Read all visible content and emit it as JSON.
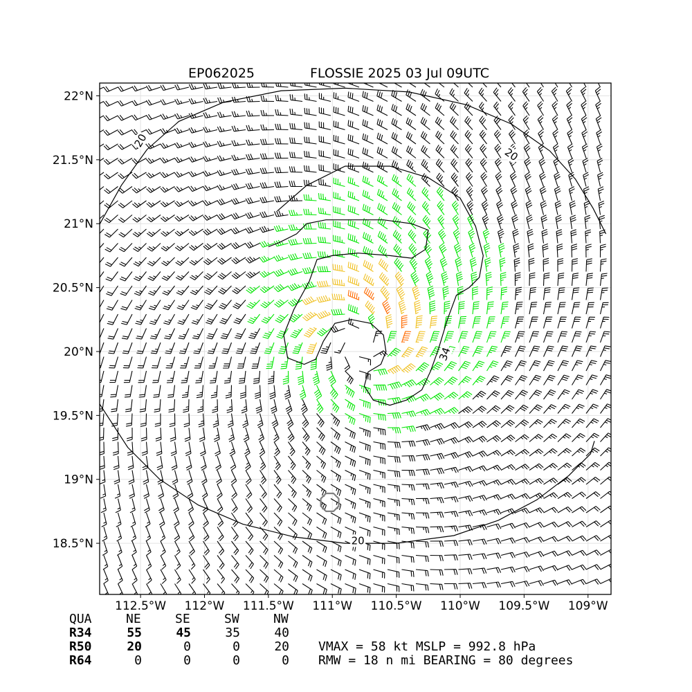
{
  "title": {
    "storm_id": "EP062025",
    "storm_label": "FLOSSIE 2025 03 Jul 09UTC"
  },
  "colors": {
    "below34": "#000000",
    "r34_to_50": "#00e600",
    "r50_to_64": "#f0c020",
    "r64_plus": "#ff6a00",
    "ring": "#808080"
  },
  "chart_data": {
    "type": "wind-barb map",
    "xlim": [
      -112.82,
      -108.82
    ],
    "ylim": [
      18.1,
      22.1
    ],
    "x_ticks": [
      {
        "value": -112.5,
        "label": "112.5°W"
      },
      {
        "value": -112.0,
        "label": "112°W"
      },
      {
        "value": -111.5,
        "label": "111.5°W"
      },
      {
        "value": -111.0,
        "label": "111°W"
      },
      {
        "value": -110.5,
        "label": "110.5°W"
      },
      {
        "value": -110.0,
        "label": "110°W"
      },
      {
        "value": -109.5,
        "label": "109.5°W"
      },
      {
        "value": -109.0,
        "label": "109°W"
      }
    ],
    "y_ticks": [
      {
        "value": 18.5,
        "label": "18.5°N"
      },
      {
        "value": 19.0,
        "label": "19°N"
      },
      {
        "value": 19.5,
        "label": "19.5°N"
      },
      {
        "value": 20.0,
        "label": "20°N"
      },
      {
        "value": 20.5,
        "label": "20.5°N"
      },
      {
        "value": 21.0,
        "label": "21°N"
      },
      {
        "value": 21.5,
        "label": "21.5°N"
      },
      {
        "value": 22.0,
        "label": "22°N"
      }
    ],
    "grid": true,
    "center": {
      "lon": -110.8,
      "lat": 20.06
    },
    "contours": [
      {
        "level_label": "20",
        "points": [
          [
            -112.84,
            20.96
          ],
          [
            -112.65,
            21.3
          ],
          [
            -112.45,
            21.58
          ],
          [
            -112.2,
            21.8
          ],
          [
            -111.85,
            21.95
          ],
          [
            -111.4,
            22.04
          ],
          [
            -110.9,
            22.06
          ],
          [
            -110.4,
            22.03
          ],
          [
            -109.95,
            21.93
          ],
          [
            -109.6,
            21.78
          ],
          [
            -109.3,
            21.57
          ],
          [
            -109.1,
            21.35
          ],
          [
            -108.96,
            21.12
          ],
          [
            -108.86,
            20.92
          ]
        ],
        "labels": [
          {
            "lon": -112.5,
            "lat": 21.65,
            "text": "20",
            "rot": -60
          },
          {
            "lon": -109.6,
            "lat": 21.54,
            "text": "20",
            "rot": 35
          }
        ]
      },
      {
        "level_label": "20",
        "points": [
          [
            -112.84,
            19.62
          ],
          [
            -112.6,
            19.25
          ],
          [
            -112.35,
            19.0
          ],
          [
            -112.05,
            18.8
          ],
          [
            -111.7,
            18.65
          ],
          [
            -111.3,
            18.55
          ],
          [
            -110.9,
            18.5
          ],
          [
            -110.5,
            18.5
          ],
          [
            -110.05,
            18.56
          ],
          [
            -109.7,
            18.68
          ],
          [
            -109.4,
            18.84
          ],
          [
            -109.15,
            19.03
          ],
          [
            -108.98,
            19.2
          ],
          [
            -108.95,
            19.3
          ]
        ],
        "labels": [
          {
            "lon": -110.8,
            "lat": 18.52,
            "text": "20",
            "rot": 0
          }
        ]
      },
      {
        "level_label": "34",
        "points": [
          [
            -111.43,
            21.1
          ],
          [
            -111.2,
            21.3
          ],
          [
            -110.9,
            21.45
          ],
          [
            -110.55,
            21.45
          ],
          [
            -110.25,
            21.36
          ],
          [
            -110.0,
            21.2
          ],
          [
            -109.88,
            20.98
          ],
          [
            -109.82,
            20.75
          ],
          [
            -109.85,
            20.58
          ],
          [
            -109.93,
            20.5
          ],
          [
            -110.03,
            20.44
          ],
          [
            -110.1,
            20.25
          ],
          [
            -110.17,
            20.02
          ],
          [
            -110.23,
            19.85
          ],
          [
            -110.3,
            19.7
          ],
          [
            -110.42,
            19.62
          ],
          [
            -110.55,
            19.58
          ],
          [
            -110.68,
            19.62
          ],
          [
            -110.75,
            19.73
          ],
          [
            -110.72,
            19.84
          ],
          [
            -110.62,
            19.9
          ],
          [
            -110.58,
            20.0
          ],
          [
            -110.6,
            20.13
          ],
          [
            -110.7,
            20.22
          ],
          [
            -110.85,
            20.25
          ],
          [
            -110.98,
            20.22
          ],
          [
            -111.07,
            20.08
          ],
          [
            -111.13,
            19.94
          ],
          [
            -111.22,
            19.9
          ],
          [
            -111.35,
            19.95
          ],
          [
            -111.38,
            20.13
          ],
          [
            -111.3,
            20.33
          ],
          [
            -111.18,
            20.55
          ],
          [
            -111.12,
            20.72
          ],
          [
            -111.0,
            20.75
          ],
          [
            -110.8,
            20.77
          ],
          [
            -110.55,
            20.75
          ],
          [
            -110.38,
            20.73
          ],
          [
            -110.27,
            20.8
          ],
          [
            -110.25,
            20.95
          ],
          [
            -110.38,
            21.0
          ],
          [
            -110.6,
            21.03
          ],
          [
            -110.8,
            21.03
          ],
          [
            -111.05,
            21.03
          ],
          [
            -111.2,
            21.0
          ],
          [
            -111.28,
            20.92
          ],
          [
            -111.42,
            20.85
          ],
          [
            -111.5,
            20.82
          ]
        ],
        "labels": [
          {
            "lon": -110.12,
            "lat": 19.98,
            "text": "34",
            "rot": -70
          }
        ]
      }
    ],
    "bands_kt": {
      "r64_plus": [
        64,
        999
      ],
      "r50_to_64": [
        50,
        64
      ],
      "r34_to_50": [
        34,
        50
      ],
      "below34": [
        0,
        34
      ]
    }
  },
  "table": {
    "header": [
      "QUA",
      "NE",
      "SE",
      "SW",
      "NW"
    ],
    "rows": [
      {
        "label": "R34",
        "values": [
          "55",
          "45",
          "35",
          "40"
        ]
      },
      {
        "label": "R50",
        "values": [
          "20",
          "0",
          "0",
          "20"
        ]
      },
      {
        "label": "R64",
        "values": [
          "0",
          "0",
          "0",
          "0"
        ]
      }
    ]
  },
  "stats": {
    "line1": "VMAX =  58 kt MSLP = 992.8 hPa",
    "line2": "RMW =  18 n mi BEARING =  80 degrees"
  }
}
